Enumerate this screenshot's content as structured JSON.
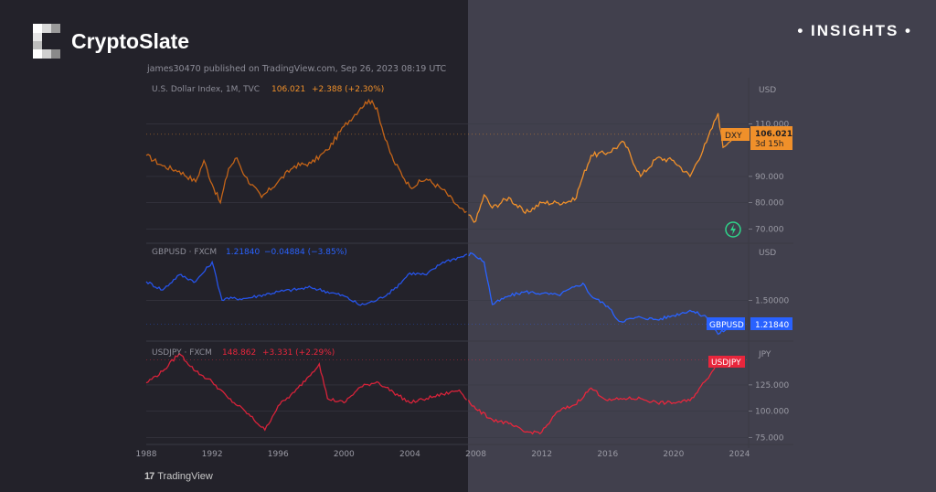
{
  "brand": {
    "name": "CryptoSlate",
    "logo_icon": "cryptoslate-logo-icon"
  },
  "badge": {
    "dot_left": "•",
    "label": "INSIGHTS",
    "dot_right": "•"
  },
  "publish_line": "james30470 published on TradingView.com, Sep 26, 2023 08:19 UTC",
  "footer": {
    "logo_mark": "17",
    "logo_text": "TradingView"
  },
  "colors": {
    "dxy": "#f0902a",
    "gbpusd": "#2962ff",
    "usdjpy": "#e8263c",
    "grid": "#3a3a44",
    "text": "#9a9aa4"
  },
  "chart_data": [
    {
      "type": "line",
      "name": "dxy",
      "title": "U.S. Dollar Index, 1M, TVC",
      "last_value_text": "106.021",
      "change_text": "+2.388 (+2.30%)",
      "tag_label": "DXY",
      "price_tag": "106.021",
      "countdown": "3d 15h",
      "currency": "USD",
      "ylim": [
        66,
        124
      ],
      "ticks": [
        {
          "value": 110,
          "label": "110.000"
        },
        {
          "value": 90,
          "label": "90.000"
        },
        {
          "value": 80,
          "label": "80.000"
        },
        {
          "value": 70,
          "label": "70.000"
        }
      ],
      "last_value": 106.021,
      "x": [
        1988,
        1989,
        1990,
        1991,
        1991.5,
        1992,
        1992.5,
        1993,
        1993.5,
        1994,
        1995,
        1996,
        1997,
        1998,
        1999,
        2000,
        2001,
        2001.5,
        2002,
        2002.5,
        2003,
        2004,
        2005,
        2006,
        2007,
        2008,
        2008.5,
        2009,
        2010,
        2011,
        2012,
        2013,
        2014,
        2014.5,
        2015,
        2016,
        2017,
        2018,
        2019,
        2020,
        2021,
        2022,
        2022.7,
        2023,
        2023.7
      ],
      "values": [
        98,
        94,
        92,
        88,
        96,
        87,
        80,
        93,
        97,
        90,
        82,
        88,
        94,
        95,
        100,
        109,
        116,
        119,
        116,
        104,
        96,
        86,
        89,
        85,
        78,
        73,
        83,
        78,
        82,
        76,
        80,
        80,
        81,
        90,
        98,
        99,
        103,
        90,
        97,
        96,
        90,
        103,
        114,
        101,
        106
      ]
    },
    {
      "type": "line",
      "name": "gbpusd",
      "title": "GBPUSD · FXCM",
      "last_value_text": "1.21840",
      "change_text": "−0.04884 (−3.85%)",
      "tag_label": "GBPUSD",
      "price_tag": "1.21840",
      "currency": "USD",
      "ylim": [
        1.05,
        2.15
      ],
      "ticks": [
        {
          "value": 1.5,
          "label": "1.50000"
        }
      ],
      "last_value": 1.2184,
      "x": [
        1988,
        1989,
        1990,
        1991,
        1992,
        1992.6,
        1992.8,
        1994,
        1996,
        1998,
        2000,
        2001,
        2002,
        2003,
        2004,
        2005,
        2006,
        2007.8,
        2008.5,
        2009,
        2010,
        2011,
        2012,
        2013,
        2014.5,
        2015,
        2016,
        2016.7,
        2018,
        2019,
        2020,
        2021,
        2022,
        2022.7,
        2023.7
      ],
      "values": [
        1.72,
        1.62,
        1.8,
        1.72,
        1.95,
        1.5,
        1.52,
        1.52,
        1.6,
        1.65,
        1.55,
        1.44,
        1.5,
        1.62,
        1.82,
        1.8,
        1.95,
        2.05,
        1.95,
        1.45,
        1.55,
        1.6,
        1.58,
        1.56,
        1.7,
        1.55,
        1.43,
        1.25,
        1.3,
        1.27,
        1.32,
        1.38,
        1.3,
        1.1,
        1.22
      ]
    },
    {
      "type": "line",
      "name": "usdjpy",
      "title": "USDJPY · FXCM",
      "last_value_text": "148.862",
      "change_text": "+3.331 (+2.29%)",
      "tag_label": "USDJPY",
      "currency": "JPY",
      "ylim": [
        70,
        165
      ],
      "ticks": [
        {
          "value": 125,
          "label": "125.000"
        },
        {
          "value": 100,
          "label": "100.000"
        },
        {
          "value": 75,
          "label": "75.000"
        }
      ],
      "last_value": 148.862,
      "x": [
        1988,
        1989,
        1990,
        1991,
        1992,
        1993,
        1994,
        1995.2,
        1996,
        1997,
        1998.5,
        1999,
        2000,
        2001,
        2002,
        2003,
        2004,
        2005,
        2006,
        2007,
        2008,
        2009,
        2010,
        2011,
        2012,
        2013,
        2014,
        2015,
        2016,
        2017,
        2018,
        2019,
        2020,
        2021,
        2022,
        2022.8,
        2023.7
      ],
      "values": [
        127,
        138,
        155,
        138,
        128,
        112,
        100,
        82,
        105,
        118,
        145,
        112,
        108,
        123,
        128,
        118,
        108,
        112,
        116,
        120,
        102,
        92,
        88,
        80,
        80,
        100,
        106,
        122,
        110,
        112,
        112,
        108,
        108,
        110,
        130,
        150,
        149
      ]
    }
  ],
  "x_axis": {
    "range": [
      1988,
      2024.5
    ],
    "ticks": [
      {
        "value": 1988,
        "label": "1988"
      },
      {
        "value": 1992,
        "label": "1992"
      },
      {
        "value": 1996,
        "label": "1996"
      },
      {
        "value": 2000,
        "label": "2000"
      },
      {
        "value": 2004,
        "label": "2004"
      },
      {
        "value": 2008,
        "label": "2008"
      },
      {
        "value": 2012,
        "label": "2012"
      },
      {
        "value": 2016,
        "label": "2016"
      },
      {
        "value": 2020,
        "label": "2020"
      },
      {
        "value": 2024,
        "label": "2024"
      }
    ]
  }
}
